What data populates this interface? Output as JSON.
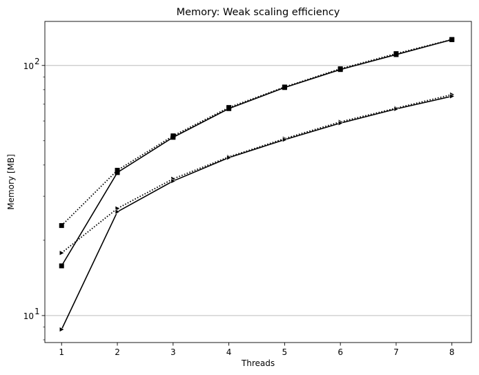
{
  "chart_data": {
    "type": "line",
    "title": "Memory:  Weak scaling efficiency",
    "xlabel": "Threads",
    "ylabel": "Memory  [MB]",
    "x": [
      1,
      2,
      3,
      4,
      5,
      6,
      7,
      8
    ],
    "xlim": [
      0.7,
      8.35
    ],
    "yscale": "log",
    "ylim": [
      7.8,
      150
    ],
    "y_ticks": [
      10,
      100
    ],
    "y_tick_labels": [
      {
        "base": "10",
        "exp": "1"
      },
      {
        "base": "10",
        "exp": "2"
      }
    ],
    "grid": "horizontal major",
    "legend": "none",
    "series": [
      {
        "marker": "square",
        "line": "dotted",
        "color": "#000000",
        "values": [
          22.9,
          38.1,
          52.3,
          67.9,
          82.0,
          97.0,
          111.5,
          127.0
        ]
      },
      {
        "marker": "square",
        "line": "solid",
        "color": "#000000",
        "values": [
          15.8,
          37.3,
          51.6,
          67.2,
          81.6,
          96.3,
          110.5,
          126.8
        ]
      },
      {
        "marker": "triangle-right",
        "line": "dotted",
        "color": "#000000",
        "values": [
          17.8,
          26.8,
          35.2,
          43.1,
          51.0,
          59.5,
          67.5,
          76.5
        ]
      },
      {
        "marker": "triangle-right",
        "line": "solid",
        "color": "#000000",
        "values": [
          8.8,
          26.0,
          34.5,
          42.8,
          50.5,
          58.8,
          67.0,
          75.3
        ]
      }
    ]
  }
}
